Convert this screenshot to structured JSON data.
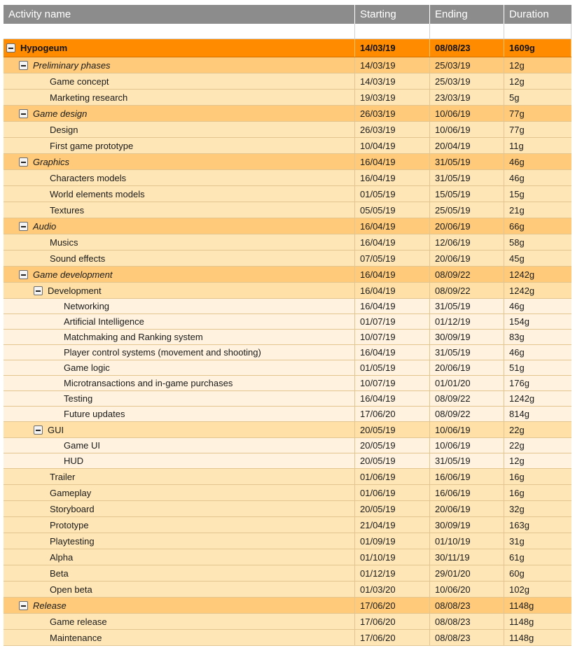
{
  "columns": {
    "activity": "Activity name",
    "starting": "Starting",
    "ending": "Ending",
    "duration": "Duration"
  },
  "rows": [
    {
      "name": "Hypogeum",
      "start": "14/03/19",
      "end": "08/08/23",
      "dur": "1609g"
    },
    {
      "name": "Preliminary phases",
      "start": "14/03/19",
      "end": "25/03/19",
      "dur": "12g"
    },
    {
      "name": "Game concept",
      "start": "14/03/19",
      "end": "25/03/19",
      "dur": "12g"
    },
    {
      "name": "Marketing research",
      "start": "19/03/19",
      "end": "23/03/19",
      "dur": "5g"
    },
    {
      "name": "Game design",
      "start": "26/03/19",
      "end": "10/06/19",
      "dur": "77g"
    },
    {
      "name": "Design",
      "start": "26/03/19",
      "end": "10/06/19",
      "dur": "77g"
    },
    {
      "name": "First game prototype",
      "start": "10/04/19",
      "end": "20/04/19",
      "dur": "11g"
    },
    {
      "name": "Graphics",
      "start": "16/04/19",
      "end": "31/05/19",
      "dur": "46g"
    },
    {
      "name": "Characters models",
      "start": "16/04/19",
      "end": "31/05/19",
      "dur": "46g"
    },
    {
      "name": "World elements models",
      "start": "01/05/19",
      "end": "15/05/19",
      "dur": "15g"
    },
    {
      "name": "Textures",
      "start": "05/05/19",
      "end": "25/05/19",
      "dur": "21g"
    },
    {
      "name": "Audio",
      "start": "16/04/19",
      "end": "20/06/19",
      "dur": "66g"
    },
    {
      "name": "Musics",
      "start": "16/04/19",
      "end": "12/06/19",
      "dur": "58g"
    },
    {
      "name": "Sound effects",
      "start": "07/05/19",
      "end": "20/06/19",
      "dur": "45g"
    },
    {
      "name": "Game development",
      "start": "16/04/19",
      "end": "08/09/22",
      "dur": "1242g"
    },
    {
      "name": "Development",
      "start": "16/04/19",
      "end": "08/09/22",
      "dur": "1242g"
    },
    {
      "name": "Networking",
      "start": "16/04/19",
      "end": "31/05/19",
      "dur": "46g"
    },
    {
      "name": "Artificial Intelligence",
      "start": "01/07/19",
      "end": "01/12/19",
      "dur": "154g"
    },
    {
      "name": "Matchmaking and Ranking system",
      "start": "10/07/19",
      "end": "30/09/19",
      "dur": "83g"
    },
    {
      "name": "Player control systems (movement and shooting)",
      "start": "16/04/19",
      "end": "31/05/19",
      "dur": "46g"
    },
    {
      "name": "Game logic",
      "start": "01/05/19",
      "end": "20/06/19",
      "dur": "51g"
    },
    {
      "name": "Microtransactions and in-game purchases",
      "start": "10/07/19",
      "end": "01/01/20",
      "dur": "176g"
    },
    {
      "name": "Testing",
      "start": "16/04/19",
      "end": "08/09/22",
      "dur": "1242g"
    },
    {
      "name": "Future updates",
      "start": "17/06/20",
      "end": "08/09/22",
      "dur": "814g"
    },
    {
      "name": "GUI",
      "start": "20/05/19",
      "end": "10/06/19",
      "dur": "22g"
    },
    {
      "name": "Game UI",
      "start": "20/05/19",
      "end": "10/06/19",
      "dur": "22g"
    },
    {
      "name": "HUD",
      "start": "20/05/19",
      "end": "31/05/19",
      "dur": "12g"
    },
    {
      "name": "Trailer",
      "start": "01/06/19",
      "end": "16/06/19",
      "dur": "16g"
    },
    {
      "name": "Gameplay",
      "start": "01/06/19",
      "end": "16/06/19",
      "dur": "16g"
    },
    {
      "name": "Storyboard",
      "start": "20/05/19",
      "end": "20/06/19",
      "dur": "32g"
    },
    {
      "name": "Prototype",
      "start": "21/04/19",
      "end": "30/09/19",
      "dur": "163g"
    },
    {
      "name": "Playtesting",
      "start": "01/09/19",
      "end": "01/10/19",
      "dur": "31g"
    },
    {
      "name": "Alpha",
      "start": "01/10/19",
      "end": "30/11/19",
      "dur": "61g"
    },
    {
      "name": "Beta",
      "start": "01/12/19",
      "end": "29/01/20",
      "dur": "60g"
    },
    {
      "name": "Open beta",
      "start": "01/03/20",
      "end": "10/06/20",
      "dur": "102g"
    },
    {
      "name": "Release",
      "start": "17/06/20",
      "end": "08/08/23",
      "dur": "1148g"
    },
    {
      "name": "Game release",
      "start": "17/06/20",
      "end": "08/08/23",
      "dur": "1148g"
    },
    {
      "name": "Maintenance",
      "start": "17/06/20",
      "end": "08/08/23",
      "dur": "1148g"
    }
  ],
  "colors": {
    "header": "#8c8c8c",
    "root": "#ff8c00",
    "group": "#ffcb7a",
    "task": "#ffe6b6",
    "subtask": "#fff3df"
  },
  "icons": {
    "collapse": "minus-box-icon"
  }
}
